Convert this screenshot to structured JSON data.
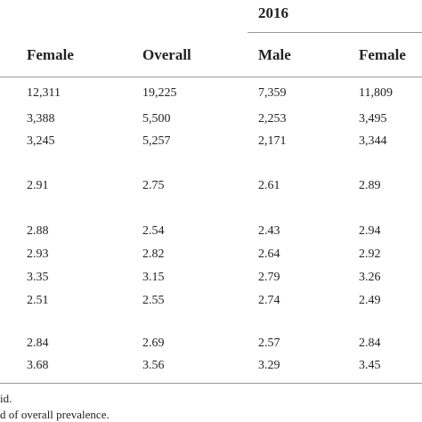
{
  "table": {
    "group_header": "2016",
    "columns": [
      "Female",
      "Overall",
      "Male",
      "Female"
    ],
    "rows": [
      [
        "12,311",
        "19,225",
        "7,359",
        "11,809"
      ],
      [
        "3,388",
        "5,500",
        "2,253",
        "3,495"
      ],
      [
        "3,245",
        "5,257",
        "2,171",
        "3,344"
      ],
      [
        "2.91",
        "2.75",
        "2.61",
        "2.89"
      ],
      [
        "2.88",
        "2.54",
        "2.43",
        "2.94"
      ],
      [
        "2.93",
        "2.82",
        "2.64",
        "2.92"
      ],
      [
        "3.35",
        "3.15",
        "2.79",
        "3.26"
      ],
      [
        "2.51",
        "2.55",
        "2.74",
        "2.49"
      ],
      [
        "2.84",
        "2.69",
        "2.57",
        "2.84"
      ],
      [
        "3.68",
        "3.56",
        "3.29",
        "3.45"
      ]
    ]
  },
  "footnotes": [
    "id.",
    "d of overall prevalence."
  ]
}
